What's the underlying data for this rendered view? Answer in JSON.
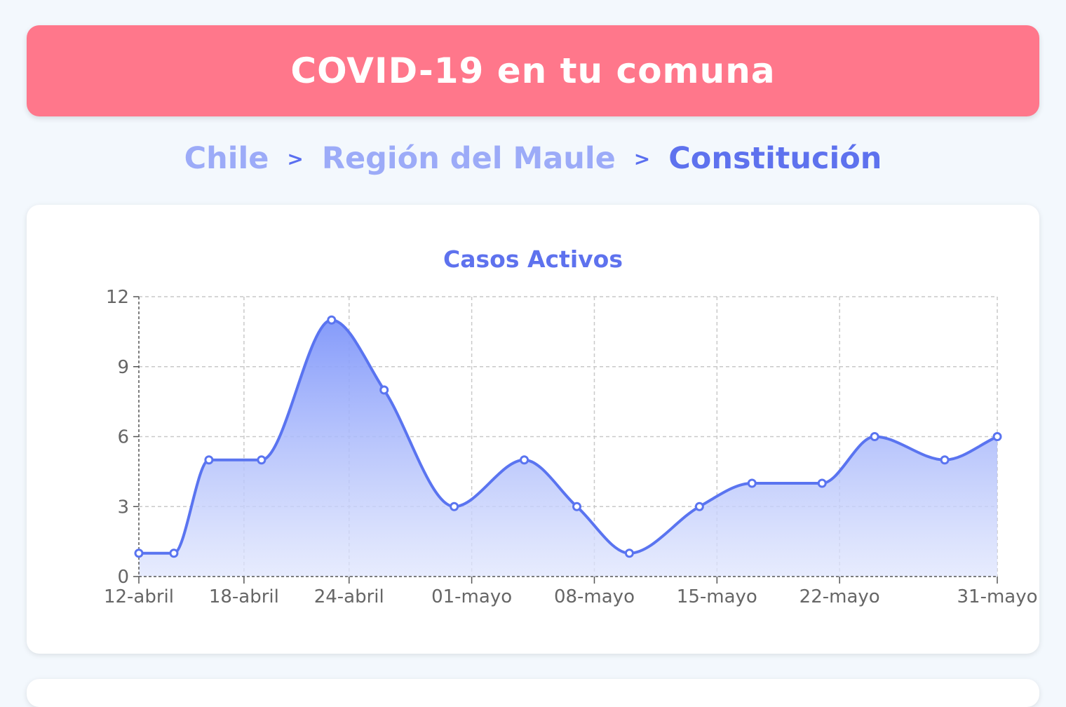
{
  "header": {
    "title": "COVID-19 en tu comuna"
  },
  "breadcrumb": {
    "country": "Chile",
    "separator": ">",
    "region": "Región del Maule",
    "commune": "Constitución"
  },
  "colors": {
    "header_bg": "#ff778b",
    "accent": "#5e72ee",
    "line": "#5a74f0",
    "crumb_inactive": "#9cabf8"
  },
  "chart_data": {
    "type": "area",
    "title": "Casos Activos",
    "xlabel": "",
    "ylabel": "",
    "ylim": [
      0,
      12
    ],
    "yticks": [
      0,
      3,
      6,
      9,
      12
    ],
    "grid": true,
    "x_tick_labels": [
      {
        "label": "12-abril",
        "day": 0
      },
      {
        "label": "18-abril",
        "day": 6
      },
      {
        "label": "24-abril",
        "day": 12
      },
      {
        "label": "01-mayo",
        "day": 19
      },
      {
        "label": "08-mayo",
        "day": 26
      },
      {
        "label": "15-mayo",
        "day": 33
      },
      {
        "label": "22-mayo",
        "day": 40
      },
      {
        "label": "31-mayo",
        "day": 49
      }
    ],
    "x_range": [
      0,
      49
    ],
    "series": [
      {
        "name": "Casos Activos",
        "points": [
          {
            "day": 0,
            "value": 1
          },
          {
            "day": 2,
            "value": 1
          },
          {
            "day": 4,
            "value": 5
          },
          {
            "day": 7,
            "value": 5
          },
          {
            "day": 11,
            "value": 11
          },
          {
            "day": 14,
            "value": 8
          },
          {
            "day": 18,
            "value": 3
          },
          {
            "day": 22,
            "value": 5
          },
          {
            "day": 25,
            "value": 3
          },
          {
            "day": 28,
            "value": 1
          },
          {
            "day": 32,
            "value": 3
          },
          {
            "day": 35,
            "value": 4
          },
          {
            "day": 39,
            "value": 4
          },
          {
            "day": 42,
            "value": 6
          },
          {
            "day": 46,
            "value": 5
          },
          {
            "day": 49,
            "value": 6
          }
        ]
      }
    ]
  }
}
